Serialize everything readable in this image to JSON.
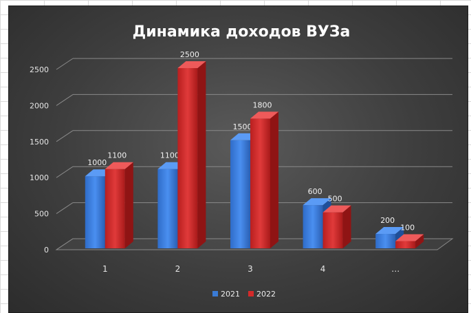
{
  "chart_data": {
    "type": "bar",
    "title": "Динамика доходов ВУЗа",
    "xlabel": "",
    "ylabel": "",
    "categories": [
      "1",
      "2",
      "3",
      "4",
      "…"
    ],
    "series": [
      {
        "name": "2021",
        "values": [
          1000,
          1100,
          1500,
          600,
          200
        ],
        "color": "#3a7bd5"
      },
      {
        "name": "2022",
        "values": [
          1100,
          2500,
          1800,
          500,
          100
        ],
        "color": "#d42a2a"
      }
    ],
    "ylim": [
      0,
      2500
    ],
    "yticks": [
      0,
      500,
      1000,
      1500,
      2000,
      2500
    ],
    "grid": true,
    "legend_position": "bottom",
    "style": "3d-column",
    "background": "#3e3e3e"
  }
}
